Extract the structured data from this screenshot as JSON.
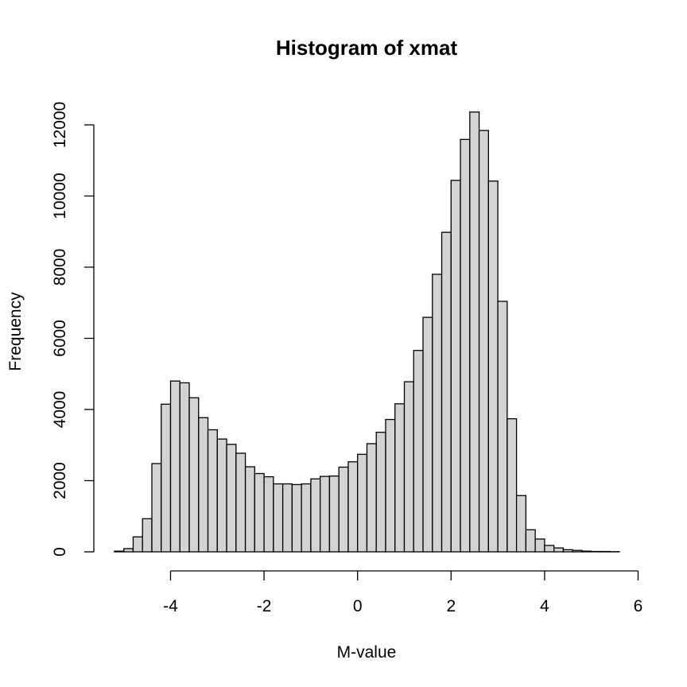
{
  "chart_data": {
    "type": "bar",
    "title": "Histogram of xmat",
    "xlabel": "M-value",
    "ylabel": "Frequency",
    "xlim": [
      -5.4,
      5.8
    ],
    "ylim": [
      0,
      12800
    ],
    "x_ticks": [
      -4,
      -2,
      0,
      2,
      4,
      6
    ],
    "y_ticks": [
      0,
      2000,
      4000,
      6000,
      8000,
      10000,
      12000
    ],
    "bin_width": 0.2,
    "bins_start": [
      -5.2,
      -5.0,
      -4.8,
      -4.6,
      -4.4,
      -4.2,
      -4.0,
      -3.8,
      -3.6,
      -3.4,
      -3.2,
      -3.0,
      -2.8,
      -2.6,
      -2.4,
      -2.2,
      -2.0,
      -1.8,
      -1.6,
      -1.4,
      -1.2,
      -1.0,
      -0.8,
      -0.6,
      -0.4,
      -0.2,
      0.0,
      0.2,
      0.4,
      0.6,
      0.8,
      1.0,
      1.2,
      1.4,
      1.6,
      1.8,
      2.0,
      2.2,
      2.4,
      2.6,
      2.8,
      3.0,
      3.2,
      3.4,
      3.6,
      3.8,
      4.0,
      4.2,
      4.4,
      4.6,
      4.8,
      5.0,
      5.2,
      5.4
    ],
    "values": [
      20,
      90,
      420,
      930,
      2480,
      4150,
      4800,
      4750,
      4330,
      3770,
      3430,
      3170,
      3020,
      2770,
      2390,
      2200,
      2110,
      1910,
      1910,
      1890,
      1910,
      2050,
      2120,
      2130,
      2380,
      2530,
      2740,
      3040,
      3360,
      3720,
      4160,
      4780,
      5660,
      6590,
      7800,
      8980,
      10440,
      11590,
      12360,
      11840,
      10420,
      7040,
      3740,
      1580,
      620,
      360,
      180,
      110,
      60,
      40,
      20,
      10,
      10,
      5
    ]
  }
}
